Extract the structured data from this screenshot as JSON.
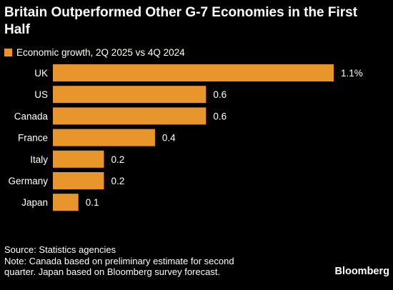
{
  "colors": {
    "background": "#000000",
    "bar": "#e8952c",
    "text": "#ffffff"
  },
  "chart_data": {
    "type": "bar",
    "orientation": "horizontal",
    "title": "Britain Outperformed Other G-7 Economies in the First Half",
    "legend": "Economic growth, 2Q 2025 vs 4Q 2024",
    "legend_placement": "top-left",
    "categories": [
      "UK",
      "US",
      "Canada",
      "France",
      "Italy",
      "Germany",
      "Japan"
    ],
    "values": [
      1.1,
      0.6,
      0.6,
      0.4,
      0.2,
      0.2,
      0.1
    ],
    "value_labels": [
      "1.1%",
      "0.6",
      "0.6",
      "0.4",
      "0.2",
      "0.2",
      "0.1"
    ],
    "xlim": [
      0,
      1.1
    ],
    "grid": false
  },
  "footer": {
    "source": "Source: Statistics agencies",
    "note_line1": "Note: Canada based on preliminary estimate for second",
    "note_line2": "quarter. Japan based on Bloomberg survey forecast.",
    "brand": "Bloomberg"
  }
}
